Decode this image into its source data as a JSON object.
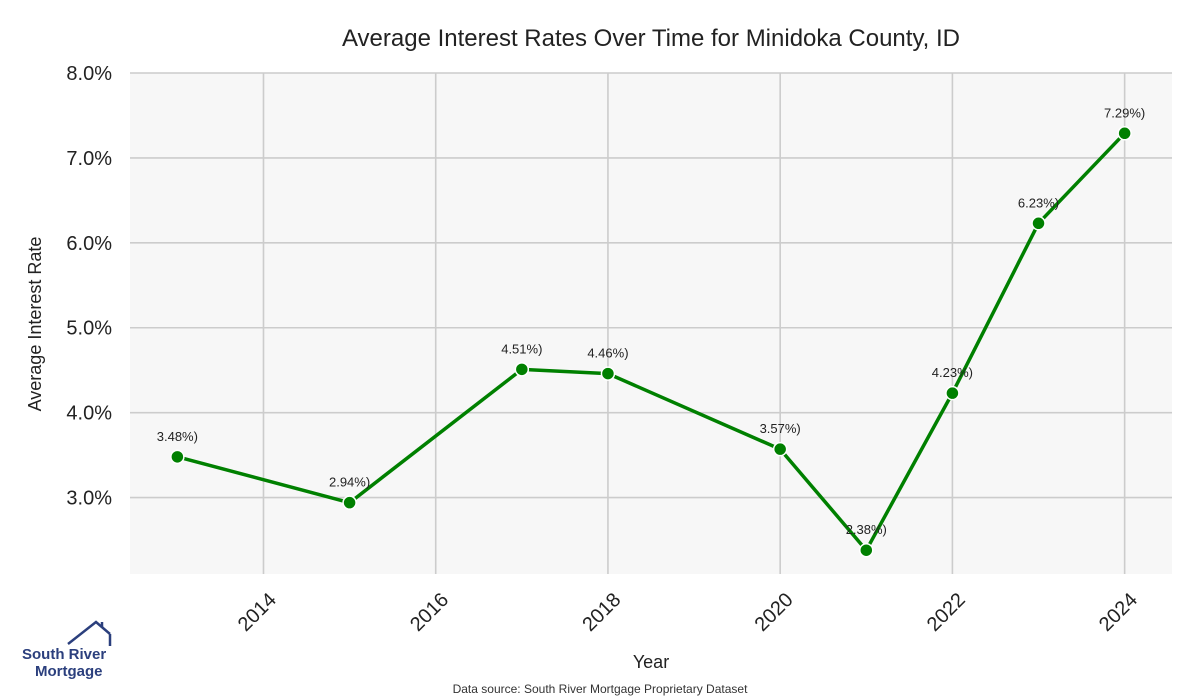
{
  "chart_data": {
    "type": "line",
    "title": "Average Interest Rates Over Time for Minidoka County, ID",
    "xlabel": "Year",
    "ylabel": "Average Interest Rate",
    "x": [
      2013,
      2015,
      2017,
      2018,
      2020,
      2021,
      2022,
      2023,
      2024
    ],
    "series": [
      {
        "values": [
          3.48,
          2.94,
          4.51,
          4.46,
          3.57,
          2.38,
          4.23,
          6.23,
          7.29
        ]
      }
    ],
    "point_labels": [
      "3.48%)",
      "2.94%)",
      "4.51%)",
      "4.46%)",
      "3.57%)",
      "2.38%)",
      "4.23%)",
      "6.23%)",
      "7.29%)"
    ],
    "x_ticks": [
      "2014",
      "2016",
      "2018",
      "2020",
      "2022",
      "2024"
    ],
    "y_ticks": [
      "3.0%",
      "4.0%",
      "5.0%",
      "6.0%",
      "7.0%",
      "8.0%"
    ],
    "ylim": [
      2.1,
      8.0
    ],
    "xlim": [
      2012.45,
      2024.55
    ],
    "grid": true,
    "line_color": "#008000",
    "plot_background": "#f7f7f7",
    "grid_color": "#cccccc"
  },
  "logo": {
    "line1": "South River",
    "line2": "Mortgage"
  },
  "source_note": "Data source: South River Mortgage Proprietary Dataset"
}
